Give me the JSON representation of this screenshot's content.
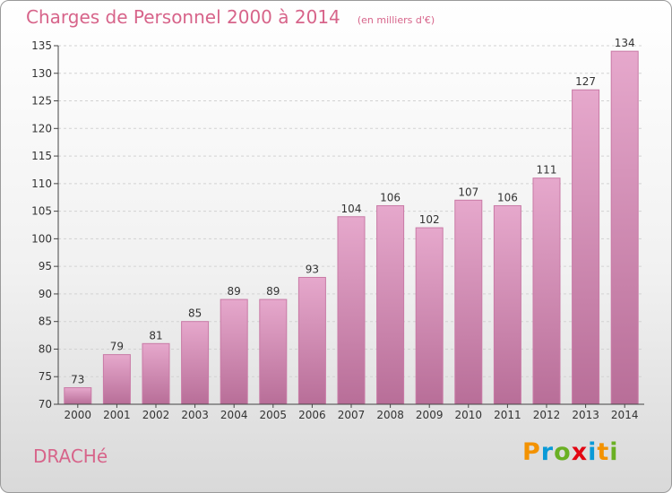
{
  "chart_data": {
    "type": "bar",
    "title": "Charges de Personnel 2000 à 2014",
    "subtitle": "(en milliers d'€)",
    "categories": [
      "2000",
      "2001",
      "2002",
      "2003",
      "2004",
      "2005",
      "2006",
      "2007",
      "2008",
      "2009",
      "2010",
      "2011",
      "2012",
      "2013",
      "2014"
    ],
    "values": [
      73,
      79,
      81,
      85,
      89,
      89,
      93,
      104,
      106,
      102,
      107,
      106,
      111,
      127,
      134
    ],
    "ylim": [
      70,
      135
    ],
    "yticks": [
      70,
      75,
      80,
      85,
      90,
      95,
      100,
      105,
      110,
      115,
      120,
      125,
      130,
      135
    ],
    "grid": true,
    "xlabel": "",
    "ylabel": "",
    "bar_color_top": "#e6a8cc",
    "bar_color_bottom": "#b86e98",
    "bar_edge": "#c97aa6"
  },
  "commune": "DRACHé",
  "brand": {
    "letters": [
      "P",
      "r",
      "o",
      "x",
      "i",
      "t",
      "i"
    ],
    "colors": [
      "#f39200",
      "#0a9ad7",
      "#6ab023",
      "#e30613",
      "#0a9ad7",
      "#f39200",
      "#6ab023"
    ]
  }
}
